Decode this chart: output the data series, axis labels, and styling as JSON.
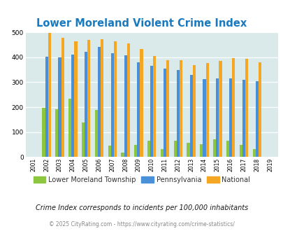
{
  "title": "Lower Moreland Violent Crime Index",
  "years": [
    2001,
    2002,
    2003,
    2004,
    2005,
    2006,
    2007,
    2008,
    2009,
    2010,
    2011,
    2012,
    2013,
    2014,
    2015,
    2016,
    2017,
    2018,
    2019
  ],
  "lower_moreland": [
    0,
    198,
    193,
    235,
    140,
    190,
    45,
    18,
    50,
    65,
    32,
    65,
    58,
    53,
    70,
    65,
    50,
    33,
    0
  ],
  "pennsylvania": [
    0,
    402,
    400,
    411,
    423,
    441,
    417,
    408,
    380,
    367,
    354,
    349,
    329,
    313,
    314,
    314,
    311,
    305,
    0
  ],
  "national": [
    0,
    498,
    477,
    463,
    469,
    473,
    465,
    455,
    432,
    405,
    389,
    389,
    368,
    378,
    385,
    397,
    394,
    381,
    0
  ],
  "local_color": "#8dc63f",
  "state_color": "#4a90d9",
  "national_color": "#f5a623",
  "bg_color": "#daeaea",
  "ylim": [
    0,
    500
  ],
  "yticks": [
    0,
    100,
    200,
    300,
    400,
    500
  ],
  "subtitle": "Crime Index corresponds to incidents per 100,000 inhabitants",
  "footer": "© 2025 CityRating.com - https://www.cityrating.com/crime-statistics/",
  "legend_labels": [
    "Lower Moreland Township",
    "Pennsylvania",
    "National"
  ]
}
